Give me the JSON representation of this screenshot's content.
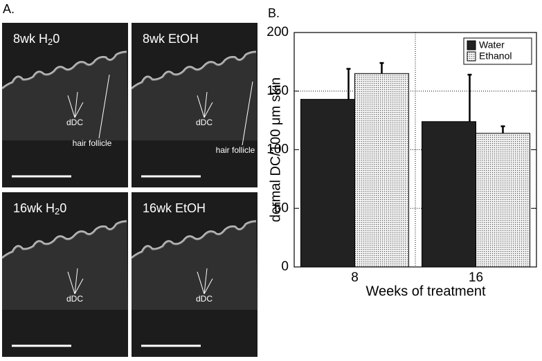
{
  "panel_a": {
    "label": "A.",
    "images": [
      {
        "title": [
          "8wk H",
          "2",
          "0"
        ],
        "annotations": [
          "dDC",
          "hair follicle"
        ]
      },
      {
        "title": [
          "8wk EtOH"
        ],
        "annotations": [
          "dDC",
          "hair follicle"
        ]
      },
      {
        "title": [
          "16wk H",
          "2",
          "0"
        ],
        "annotations": [
          "dDC"
        ]
      },
      {
        "title": [
          "16wk EtOH"
        ],
        "annotations": [
          "dDC"
        ]
      }
    ]
  },
  "chart_data": {
    "type": "bar",
    "panel_label": "B.",
    "categories": [
      "8",
      "16"
    ],
    "series": [
      {
        "name": "Water",
        "color": "#222222",
        "values": [
          143,
          124
        ],
        "errors": [
          26,
          40
        ]
      },
      {
        "name": "Ethanol",
        "color": "#dddddd",
        "values": [
          165,
          114
        ],
        "errors": [
          9,
          6
        ]
      }
    ],
    "ylim": [
      0,
      200
    ],
    "yticks": [
      0,
      50,
      100,
      150,
      200
    ],
    "ylabel": "dermal DC/100 μm skin",
    "xlabel": "Weeks of treatment",
    "grid": true,
    "legend": "top-right"
  }
}
